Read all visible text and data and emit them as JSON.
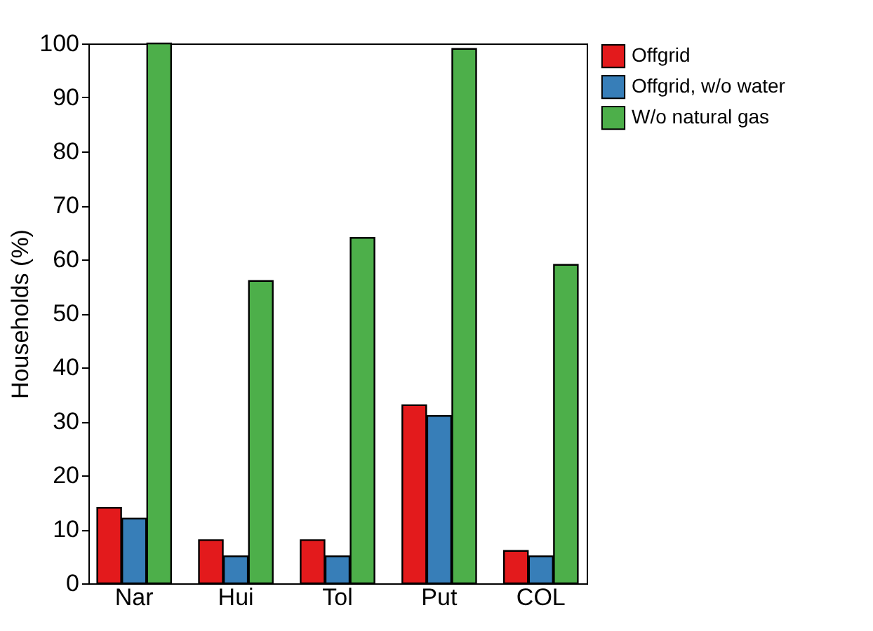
{
  "chart_data": {
    "type": "bar",
    "ylabel": "Households (%)",
    "categories": [
      "Nar",
      "Hui",
      "Tol",
      "Put",
      "COL"
    ],
    "series": [
      {
        "name": "Offgrid",
        "color": "#e31a1c",
        "values": [
          14,
          8,
          8,
          33,
          6
        ]
      },
      {
        "name": "Offgrid, w/o water",
        "color": "#377eb8",
        "values": [
          12,
          5,
          5,
          31,
          5
        ]
      },
      {
        "name": "W/o natural gas",
        "color": "#4daf4a",
        "values": [
          100,
          56,
          64,
          99,
          59
        ]
      }
    ],
    "ylim": [
      0,
      100
    ],
    "yticks": [
      0,
      10,
      20,
      30,
      40,
      50,
      60,
      70,
      80,
      90,
      100
    ],
    "grid": false,
    "legend": "top right"
  }
}
